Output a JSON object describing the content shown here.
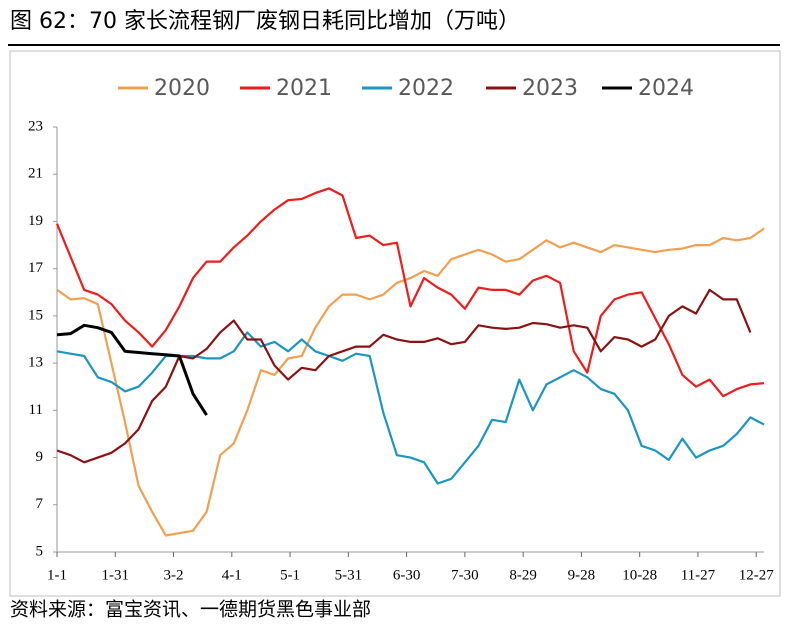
{
  "chart_data": {
    "type": "line",
    "title": "图 62：70 家长流程钢厂废钢日耗同比增加（万吨）",
    "source": "资料来源：富宝资讯、一德期货黑色事业部",
    "x": [
      0,
      7,
      14,
      21,
      28,
      35,
      42,
      49,
      56,
      63,
      70,
      77,
      84,
      91,
      98,
      105,
      112,
      119,
      126,
      133,
      140,
      147,
      154,
      161,
      168,
      175,
      182,
      189,
      196,
      203,
      210,
      217,
      224,
      231,
      238,
      245,
      252,
      259,
      266,
      273,
      280,
      287,
      294,
      301,
      308,
      315,
      322,
      329,
      336,
      343,
      350,
      357,
      364
    ],
    "xlim": [
      0,
      364
    ],
    "xticks": [
      {
        "value": 0,
        "label": "1-1"
      },
      {
        "value": 30,
        "label": "1-31"
      },
      {
        "value": 60,
        "label": "3-2"
      },
      {
        "value": 90,
        "label": "4-1"
      },
      {
        "value": 120,
        "label": "5-1"
      },
      {
        "value": 150,
        "label": "5-31"
      },
      {
        "value": 180,
        "label": "6-30"
      },
      {
        "value": 210,
        "label": "7-30"
      },
      {
        "value": 240,
        "label": "8-29"
      },
      {
        "value": 270,
        "label": "9-28"
      },
      {
        "value": 300,
        "label": "10-28"
      },
      {
        "value": 330,
        "label": "11-27"
      },
      {
        "value": 360,
        "label": "12-27"
      }
    ],
    "ylim": [
      5,
      23
    ],
    "yticks": [
      5,
      7,
      9,
      11,
      13,
      15,
      17,
      19,
      21,
      23
    ],
    "series": [
      {
        "name": "2020",
        "color": "#f0a050",
        "values": [
          16.1,
          15.7,
          15.75,
          15.5,
          13.0,
          10.5,
          7.8,
          6.7,
          5.7,
          5.8,
          5.9,
          6.7,
          9.1,
          9.6,
          11.0,
          12.7,
          12.5,
          13.2,
          13.3,
          14.5,
          15.4,
          15.9,
          15.9,
          15.7,
          15.9,
          16.4,
          16.6,
          16.9,
          16.7,
          17.4,
          17.6,
          17.8,
          17.6,
          17.3,
          17.4,
          17.8,
          18.2,
          17.9,
          18.1,
          17.9,
          17.7,
          18.0,
          17.9,
          17.8,
          17.7,
          17.8,
          17.85,
          18.0,
          18.0,
          18.3,
          18.2,
          18.3,
          18.7
        ]
      },
      {
        "name": "2021",
        "color": "#ee1c1c",
        "values": [
          18.9,
          17.5,
          16.1,
          15.9,
          15.5,
          14.8,
          14.3,
          13.7,
          14.4,
          15.4,
          16.6,
          17.3,
          17.3,
          17.9,
          18.4,
          19.0,
          19.5,
          19.9,
          19.95,
          20.2,
          20.4,
          20.1,
          18.3,
          18.4,
          18.0,
          18.1,
          15.4,
          16.6,
          16.2,
          15.9,
          15.3,
          16.2,
          16.1,
          16.1,
          15.9,
          16.5,
          16.7,
          16.4,
          13.5,
          12.6,
          15.0,
          15.7,
          15.9,
          16.0,
          14.9,
          13.8,
          12.5,
          12.0,
          12.3,
          11.6,
          11.9,
          12.1,
          12.15
        ]
      },
      {
        "name": "2022",
        "color": "#1a96c0",
        "values": [
          13.5,
          13.4,
          13.3,
          12.4,
          12.2,
          11.8,
          12.0,
          12.6,
          13.3,
          13.3,
          13.3,
          13.2,
          13.2,
          13.5,
          14.3,
          13.7,
          13.9,
          13.5,
          14.0,
          13.5,
          13.3,
          13.1,
          13.4,
          13.3,
          10.9,
          9.1,
          9.0,
          8.8,
          7.9,
          8.1,
          8.8,
          9.5,
          10.6,
          10.5,
          12.3,
          11.0,
          12.1,
          12.4,
          12.7,
          12.4,
          11.9,
          11.7,
          11.0,
          9.5,
          9.3,
          8.9,
          9.8,
          9.0,
          9.3,
          9.5,
          10.0,
          10.7,
          10.4
        ]
      },
      {
        "name": "2023",
        "color": "#8b1212",
        "values": [
          9.3,
          9.1,
          8.8,
          9.0,
          9.2,
          9.6,
          10.2,
          11.4,
          12.0,
          13.3,
          13.2,
          13.6,
          14.3,
          14.8,
          14.0,
          14.0,
          12.9,
          12.3,
          12.8,
          12.7,
          13.3,
          13.5,
          13.7,
          13.7,
          14.2,
          14.0,
          13.9,
          13.9,
          14.05,
          13.8,
          13.9,
          14.6,
          14.5,
          14.45,
          14.5,
          14.7,
          14.65,
          14.5,
          14.6,
          14.5,
          13.5,
          14.1,
          14.0,
          13.7,
          14.0,
          15.0,
          15.4,
          15.1,
          16.1,
          15.7,
          15.7,
          14.3,
          null
        ]
      },
      {
        "name": "2024",
        "color": "#000000",
        "values": [
          14.2,
          14.25,
          14.6,
          14.5,
          14.3,
          13.5,
          13.45,
          13.4,
          13.35,
          13.3,
          11.7,
          10.8,
          null,
          null,
          null,
          null,
          null,
          null,
          null,
          null,
          null,
          null,
          null,
          null,
          null,
          null,
          null,
          null,
          null,
          null,
          null,
          null,
          null,
          null,
          null,
          null,
          null,
          null,
          null,
          null,
          null,
          null,
          null,
          null,
          null,
          null,
          null,
          null,
          null,
          null,
          null,
          null,
          null
        ]
      }
    ]
  }
}
